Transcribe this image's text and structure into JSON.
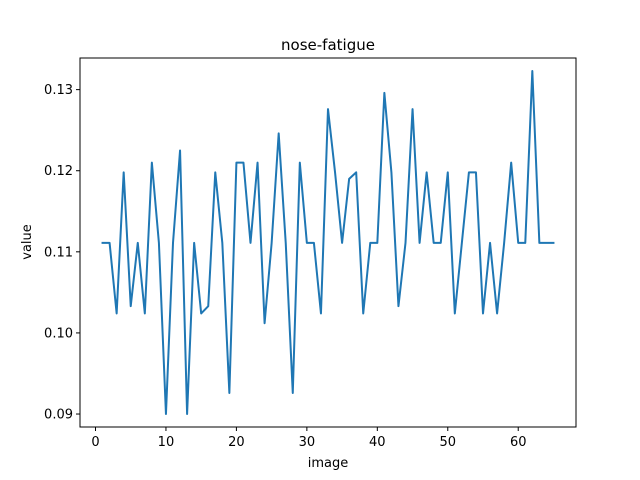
{
  "chart_data": {
    "type": "line",
    "title": "nose-fatigue",
    "xlabel": "image",
    "ylabel": "value",
    "xlim": [
      -2.2,
      68.2
    ],
    "ylim": [
      0.0884,
      0.1339
    ],
    "xticks": [
      0,
      10,
      20,
      30,
      40,
      50,
      60
    ],
    "yticks": [
      0.09,
      0.1,
      0.11,
      0.12,
      0.13
    ],
    "ytick_labels": [
      "0.09",
      "0.10",
      "0.11",
      "0.12",
      "0.13"
    ],
    "grid": false,
    "series": [
      {
        "color": "#1f77b4",
        "x": [
          1,
          2,
          3,
          4,
          5,
          6,
          7,
          8,
          9,
          10,
          11,
          12,
          13,
          14,
          15,
          16,
          17,
          18,
          19,
          20,
          21,
          22,
          23,
          24,
          25,
          26,
          27,
          28,
          29,
          30,
          31,
          32,
          33,
          34,
          35,
          36,
          37,
          38,
          39,
          40,
          41,
          42,
          43,
          44,
          45,
          46,
          47,
          48,
          49,
          50,
          51,
          52,
          53,
          54,
          55,
          56,
          57,
          58,
          59,
          60,
          61,
          62,
          63,
          64,
          65
        ],
        "values": [
          0.1111,
          0.1111,
          0.1024,
          0.1198,
          0.1033,
          0.1111,
          0.1024,
          0.121,
          0.1111,
          0.09,
          0.1111,
          0.1225,
          0.09,
          0.1111,
          0.1024,
          0.1033,
          0.1198,
          0.1111,
          0.0926,
          0.121,
          0.121,
          0.1111,
          0.121,
          0.1012,
          0.1111,
          0.1246,
          0.1111,
          0.0926,
          0.121,
          0.1111,
          0.1111,
          0.1024,
          0.1276,
          0.1198,
          0.1111,
          0.119,
          0.1198,
          0.1024,
          0.1111,
          0.1111,
          0.1296,
          0.1198,
          0.1033,
          0.1111,
          0.1276,
          0.1111,
          0.1198,
          0.1111,
          0.1111,
          0.1198,
          0.1024,
          0.1111,
          0.1198,
          0.1198,
          0.1024,
          0.1111,
          0.1024,
          0.1111,
          0.121,
          0.1111,
          0.1111,
          0.1323,
          0.1111,
          0.1111,
          0.1111
        ]
      }
    ]
  }
}
